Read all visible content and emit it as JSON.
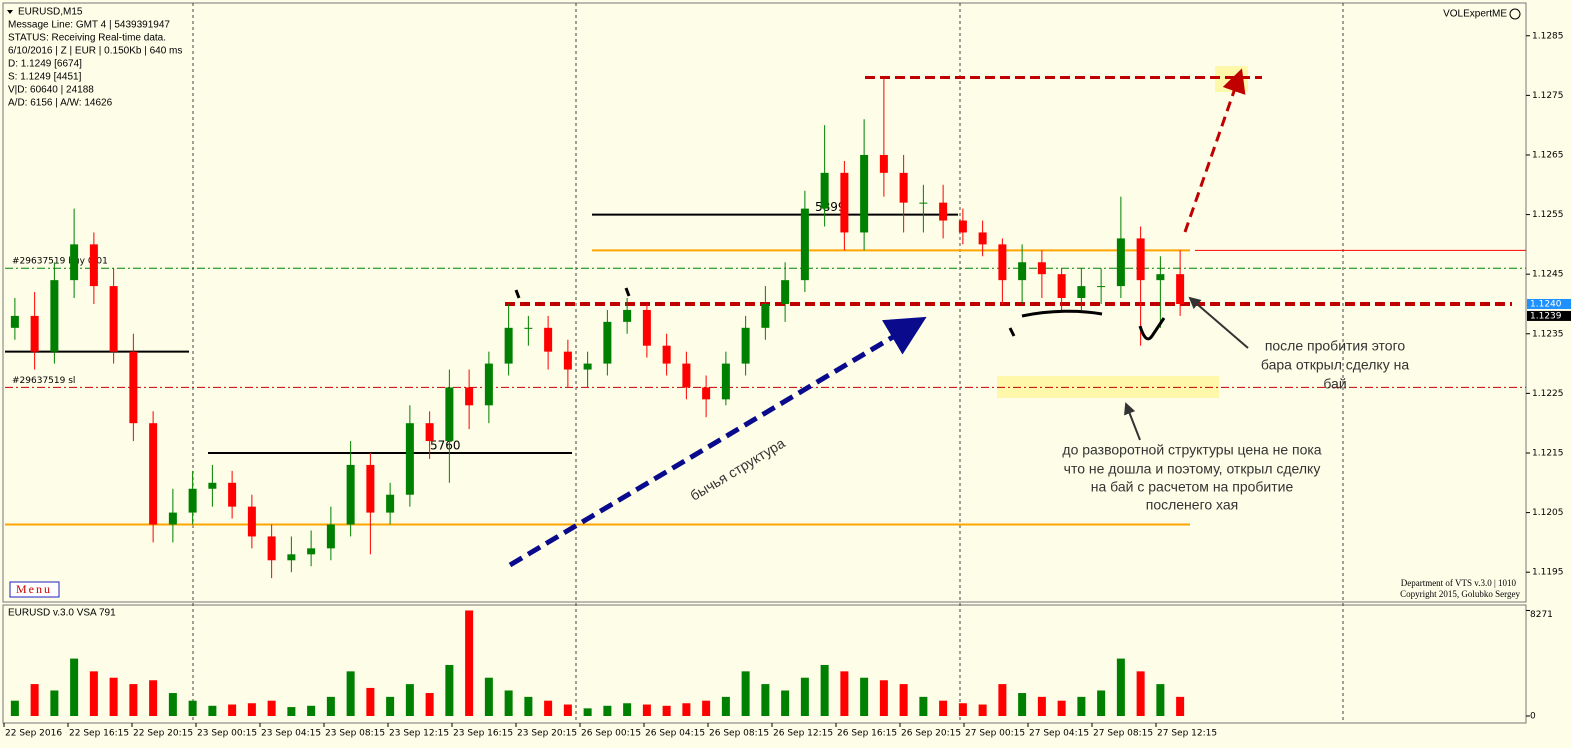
{
  "chart_data": [
    {
      "type": "candlestick",
      "title": "EURUSD,M15",
      "info": [
        "Message Line: GMT 4 | 5439391947",
        "STATUS:  Receiving Real-time data.",
        "6/10/2016 | Z | EUR | 0.150Kb | 640 ms",
        "D: 1.1249  [6674]",
        "S: 1.1249  [4451]",
        "V|D: 60640 | 24188",
        "A/D: 6156 | A/W: 14626"
      ],
      "indicator": "VOLExpertME",
      "menu": "Menu",
      "footer": [
        "Department of VTS  v.3.0 | 1010",
        "Copyright 2015, Golubko Sergey"
      ],
      "up_color": "#008000",
      "down_color": "#ff0000",
      "open": [
        1.1236,
        1.1238,
        1.1232,
        1.1244,
        1.125,
        1.1243,
        1.1232,
        1.122,
        1.1203,
        1.1205,
        1.1209,
        1.121,
        1.1206,
        1.1201,
        1.1197,
        1.1198,
        1.1199,
        1.1203,
        1.1213,
        1.1205,
        1.1208,
        1.122,
        1.1217,
        1.1226,
        1.1223,
        1.123,
        1.1236,
        1.1236,
        1.1232,
        1.1229,
        1.123,
        1.1237,
        1.1239,
        1.1233,
        1.123,
        1.1226,
        1.1224,
        1.123,
        1.1236,
        1.124,
        1.1244,
        1.1256,
        1.1262,
        1.1252,
        1.1265,
        1.1262,
        1.1257,
        1.1257,
        1.1254,
        1.1252,
        1.125,
        1.1244,
        1.1247,
        1.1245,
        1.1241,
        1.1243,
        1.1243,
        1.1251,
        1.1244,
        1.1245
      ],
      "high": [
        1.1241,
        1.1242,
        1.1247,
        1.1256,
        1.1252,
        1.1246,
        1.1235,
        1.1222,
        1.1209,
        1.1212,
        1.1213,
        1.1212,
        1.1208,
        1.1203,
        1.1201,
        1.1202,
        1.1206,
        1.1217,
        1.1215,
        1.121,
        1.1223,
        1.1222,
        1.1229,
        1.1229,
        1.1232,
        1.124,
        1.1238,
        1.1238,
        1.1234,
        1.1232,
        1.1239,
        1.1241,
        1.124,
        1.1235,
        1.1232,
        1.1228,
        1.1232,
        1.1238,
        1.1243,
        1.1247,
        1.1259,
        1.127,
        1.1264,
        1.1271,
        1.1278,
        1.1265,
        1.126,
        1.126,
        1.1256,
        1.1254,
        1.1251,
        1.125,
        1.1249,
        1.1246,
        1.1246,
        1.1246,
        1.1258,
        1.1253,
        1.1248,
        1.1249
      ],
      "low": [
        1.1234,
        1.1229,
        1.123,
        1.1241,
        1.124,
        1.123,
        1.1217,
        1.12,
        1.12,
        1.1203,
        1.1206,
        1.1204,
        1.1199,
        1.1194,
        1.1195,
        1.1196,
        1.1197,
        1.1201,
        1.1198,
        1.1203,
        1.1206,
        1.1214,
        1.121,
        1.1219,
        1.122,
        1.1228,
        1.1233,
        1.1229,
        1.1226,
        1.1226,
        1.1228,
        1.1235,
        1.1231,
        1.1228,
        1.1224,
        1.1221,
        1.1223,
        1.1228,
        1.1234,
        1.1237,
        1.1242,
        1.1253,
        1.1249,
        1.1249,
        1.1258,
        1.1252,
        1.1252,
        1.1251,
        1.125,
        1.1248,
        1.124,
        1.124,
        1.1241,
        1.1239,
        1.1239,
        1.124,
        1.1241,
        1.1233,
        1.1236,
        1.1238
      ],
      "close": [
        1.1238,
        1.1232,
        1.1244,
        1.125,
        1.1243,
        1.1232,
        1.122,
        1.1203,
        1.1205,
        1.1209,
        1.121,
        1.1206,
        1.1201,
        1.1197,
        1.1198,
        1.1199,
        1.1203,
        1.1213,
        1.1205,
        1.1208,
        1.122,
        1.1217,
        1.1226,
        1.1223,
        1.123,
        1.1236,
        1.1236,
        1.1232,
        1.1229,
        1.123,
        1.1237,
        1.1239,
        1.1233,
        1.123,
        1.1226,
        1.1224,
        1.123,
        1.1236,
        1.124,
        1.1244,
        1.1256,
        1.1262,
        1.1252,
        1.1265,
        1.1262,
        1.1257,
        1.1257,
        1.1254,
        1.1252,
        1.125,
        1.1244,
        1.1247,
        1.1245,
        1.1241,
        1.1243,
        1.1243,
        1.1251,
        1.1244,
        1.1245,
        1.124
      ],
      "ylim": [
        1.119,
        1.1291
      ],
      "yticks": [
        1.1195,
        1.1205,
        1.1215,
        1.1225,
        1.1235,
        1.1245,
        1.1255,
        1.1265,
        1.1275,
        1.1285
      ],
      "levels": [
        {
          "value": 1.1278,
          "color": "#c00000",
          "style": "dash"
        },
        {
          "value": 1.1255,
          "color": "#000000",
          "style": "solid",
          "label": "5899"
        },
        {
          "value": 1.1249,
          "color": "#ffa500",
          "style": "solid"
        },
        {
          "value": 1.1249,
          "color": "#ff0000",
          "style": "solid"
        },
        {
          "value": 1.1246,
          "color": "#008000",
          "style": "dashdot",
          "label": "#29637519 buy 0.01"
        },
        {
          "value": 1.124,
          "color": "#c00000",
          "style": "dash"
        },
        {
          "value": 1.1232,
          "color": "#000000",
          "style": "solid"
        },
        {
          "value": 1.1226,
          "color": "#c00000",
          "style": "dashdot",
          "label": "#29637519 sl"
        },
        {
          "value": 1.1215,
          "color": "#000000",
          "style": "solid",
          "label": "5760"
        },
        {
          "value": 1.1203,
          "color": "#ffa500",
          "style": "solid"
        }
      ],
      "price_flags": [
        {
          "value": 1.124,
          "label": "1.1240",
          "color": "#1e90ff"
        },
        {
          "value": 1.1239,
          "label": "1.1239",
          "color": "#000000"
        }
      ],
      "annotations": [
        {
          "lines": [
            "бычья структура"
          ]
        },
        {
          "lines": [
            "после пробития этого",
            "бара открыл сделку на",
            "бай"
          ]
        },
        {
          "lines": [
            "до разворотной структуры цена не пока",
            "что не дошла и поэтому, открыл сделку",
            "на бай с расчетом на пробитие",
            "посленего хая"
          ]
        }
      ]
    },
    {
      "type": "bar",
      "title": "EURUSD v.3.0 VSA 791",
      "values": [
        1200,
        2500,
        2000,
        4500,
        3500,
        3000,
        2500,
        2800,
        1800,
        1200,
        800,
        900,
        1000,
        1200,
        700,
        800,
        1500,
        3500,
        2200,
        1500,
        2500,
        1800,
        4000,
        8271,
        3000,
        2000,
        1500,
        1200,
        900,
        600,
        800,
        1000,
        900,
        800,
        1000,
        1200,
        1500,
        3500,
        2500,
        2000,
        3000,
        4000,
        3500,
        3000,
        2800,
        2500,
        1500,
        1200,
        1000,
        900,
        2500,
        1800,
        1500,
        1200,
        1500,
        2000,
        4500,
        3500,
        2500,
        1500
      ],
      "ylim": [
        0,
        8700
      ],
      "yticks": [
        0,
        8271
      ],
      "xtick_labels": [
        "22 Sep 2016",
        "22 Sep 16:15",
        "22 Sep 20:15",
        "23 Sep 00:15",
        "23 Sep 04:15",
        "23 Sep 08:15",
        "23 Sep 12:15",
        "23 Sep 16:15",
        "23 Sep 20:15",
        "26 Sep 00:15",
        "26 Sep 04:15",
        "26 Sep 08:15",
        "26 Sep 12:15",
        "26 Sep 16:15",
        "26 Sep 20:15",
        "27 Sep 00:15",
        "27 Sep 04:15",
        "27 Sep 08:15",
        "27 Sep 12:15"
      ]
    }
  ]
}
